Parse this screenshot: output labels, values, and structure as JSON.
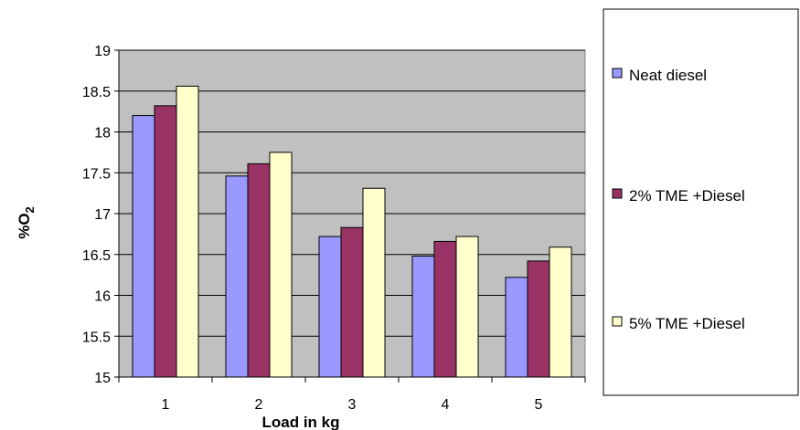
{
  "chart_data": {
    "type": "bar",
    "title": "",
    "xlabel": "Load in kg",
    "ylabel": "%O",
    "ylabel_subscript": "2",
    "categories": [
      "1",
      "2",
      "3",
      "4",
      "5"
    ],
    "ylim": [
      15,
      19
    ],
    "yticks": [
      15,
      15.5,
      16,
      16.5,
      17,
      17.5,
      18,
      18.5,
      19
    ],
    "grid": true,
    "legend_position": "right",
    "plot_background": "#C0C0C0",
    "series": [
      {
        "name": "Neat diesel",
        "color": "#9999FF",
        "values": [
          18.2,
          17.46,
          16.72,
          16.48,
          16.22
        ]
      },
      {
        "name": "2% TME +Diesel",
        "color": "#993366",
        "values": [
          18.32,
          17.61,
          16.83,
          16.66,
          16.42
        ]
      },
      {
        "name": "5% TME +Diesel",
        "color": "#FFFFCC",
        "values": [
          18.56,
          17.75,
          17.31,
          16.72,
          16.59
        ]
      }
    ]
  }
}
